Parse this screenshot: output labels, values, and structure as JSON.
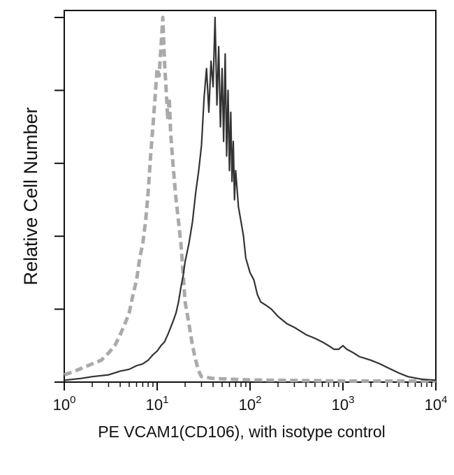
{
  "chart_data": {
    "type": "line",
    "title": "",
    "xlabel": "PE VCAM1(CD106), with isotype control",
    "ylabel": "Relative Cell Number",
    "xscale": "log",
    "xlim": [
      1,
      10000
    ],
    "ylim": [
      0,
      100
    ],
    "grid": false,
    "legend": "none",
    "xticks": [
      {
        "base": "10",
        "exp": "0",
        "value": 1
      },
      {
        "base": "10",
        "exp": "1",
        "value": 10
      },
      {
        "base": "10",
        "exp": "2",
        "value": 100
      },
      {
        "base": "10",
        "exp": "3",
        "value": 1000
      },
      {
        "base": "10",
        "exp": "4",
        "value": 10000
      }
    ],
    "yticks": [
      0,
      20,
      40,
      60,
      80,
      100
    ],
    "series": [
      {
        "color": "#aaaaaa",
        "style": "dashed",
        "x": [
          1,
          1.3,
          1.6,
          2,
          2.5,
          3,
          3.5,
          4,
          4.5,
          5,
          5.5,
          6,
          6.5,
          7,
          7.5,
          8,
          8.5,
          9,
          9.5,
          10,
          10.5,
          11,
          11.5,
          12,
          12.5,
          13,
          13.5,
          14,
          15,
          16,
          17,
          18,
          19,
          20,
          22,
          24,
          26,
          28,
          30,
          40,
          60,
          100,
          200,
          500,
          1000,
          3000,
          10000
        ],
        "y": [
          2,
          3,
          4,
          5,
          6,
          8,
          10,
          13,
          16,
          19,
          24,
          28,
          34,
          38,
          44,
          52,
          62,
          70,
          78,
          86,
          84,
          92,
          100,
          88,
          80,
          72,
          78,
          68,
          58,
          50,
          44,
          38,
          30,
          22,
          16,
          10,
          6,
          3,
          1.5,
          1,
          0.8,
          0.6,
          0.5,
          0.4,
          0.3,
          0.3,
          0.3
        ]
      },
      {
        "color": "#333333",
        "style": "solid",
        "x": [
          1,
          1.5,
          2,
          3,
          4,
          5,
          6,
          7,
          8,
          9,
          10,
          11,
          12,
          13,
          14,
          15,
          16,
          17,
          18,
          19,
          20,
          22,
          24,
          26,
          28,
          30,
          32,
          34,
          36,
          38,
          40,
          42,
          44,
          46,
          48,
          50,
          52,
          54,
          56,
          58,
          60,
          62,
          64,
          66,
          68,
          70,
          75,
          80,
          85,
          90,
          100,
          110,
          120,
          130,
          150,
          170,
          200,
          250,
          300,
          400,
          500,
          600,
          700,
          800,
          900,
          1000,
          1100,
          1300,
          1500,
          2000,
          2500,
          3000,
          4000,
          5000,
          7000,
          10000
        ],
        "y": [
          0.5,
          1,
          1.5,
          2,
          3,
          3.5,
          4.5,
          5,
          6,
          7.5,
          8.5,
          10,
          11,
          13,
          15,
          17,
          19,
          22,
          26,
          29,
          33,
          38,
          44,
          52,
          58,
          65,
          78,
          86,
          74,
          88,
          81,
          100,
          76,
          92,
          70,
          86,
          66,
          90,
          62,
          80,
          58,
          74,
          55,
          66,
          50,
          58,
          48,
          44,
          40,
          34,
          30,
          28,
          24,
          22,
          21,
          20,
          18,
          16,
          15,
          13,
          12,
          11,
          10,
          9,
          9,
          10,
          9,
          8,
          7,
          6,
          5,
          4,
          2.5,
          1.5,
          0.8,
          0.5
        ]
      }
    ]
  }
}
